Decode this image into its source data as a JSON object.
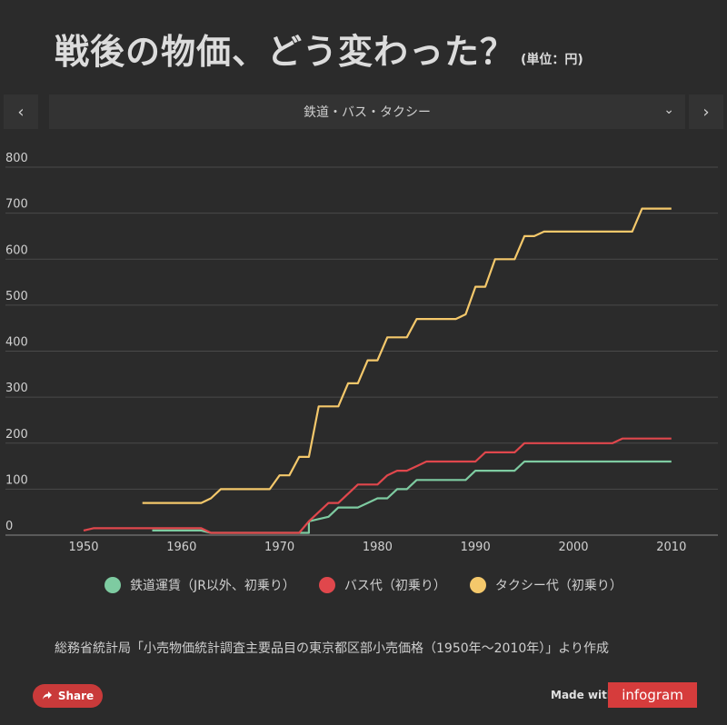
{
  "header": {
    "title": "戦後の物価、どう変わった？",
    "unit": "(単位：円)"
  },
  "nav": {
    "prev_icon": "‹",
    "next_icon": "›",
    "selected_category": "鉄道・バス・タクシー",
    "dropdown_icon": "⌄"
  },
  "chart_data": {
    "type": "line",
    "title": "戦後の物価、どう変わった？",
    "ylabel": "単位：円",
    "xlim": [
      1945,
      2015
    ],
    "ylim": [
      0,
      800
    ],
    "x_ticks": [
      1950,
      1960,
      1970,
      1980,
      1990,
      2000,
      2010
    ],
    "y_ticks": [
      0,
      100,
      200,
      300,
      400,
      500,
      600,
      700,
      800
    ],
    "series": [
      {
        "name": "鉄道運賃（JR以外、初乗り）",
        "color": "#7ecba1",
        "points": [
          [
            1957,
            10
          ],
          [
            1962,
            10
          ],
          [
            1963,
            5
          ],
          [
            1971,
            5
          ],
          [
            1973,
            5
          ],
          [
            1973,
            30
          ],
          [
            1974,
            35
          ],
          [
            1975,
            40
          ],
          [
            1976,
            60
          ],
          [
            1977,
            60
          ],
          [
            1978,
            60
          ],
          [
            1979,
            70
          ],
          [
            1980,
            80
          ],
          [
            1981,
            80
          ],
          [
            1982,
            100
          ],
          [
            1983,
            100
          ],
          [
            1984,
            120
          ],
          [
            1985,
            120
          ],
          [
            1989,
            120
          ],
          [
            1990,
            140
          ],
          [
            1991,
            140
          ],
          [
            1994,
            140
          ],
          [
            1995,
            160
          ],
          [
            2010,
            160
          ]
        ]
      },
      {
        "name": "バス代（初乗り）",
        "color": "#e0474c",
        "points": [
          [
            1950,
            10
          ],
          [
            1951,
            15
          ],
          [
            1962,
            15
          ],
          [
            1963,
            5
          ],
          [
            1972,
            5
          ],
          [
            1973,
            30
          ],
          [
            1974,
            50
          ],
          [
            1975,
            70
          ],
          [
            1976,
            70
          ],
          [
            1977,
            90
          ],
          [
            1978,
            110
          ],
          [
            1979,
            110
          ],
          [
            1980,
            110
          ],
          [
            1981,
            130
          ],
          [
            1982,
            140
          ],
          [
            1983,
            140
          ],
          [
            1984,
            150
          ],
          [
            1985,
            160
          ],
          [
            1990,
            160
          ],
          [
            1991,
            180
          ],
          [
            1992,
            180
          ],
          [
            1994,
            180
          ],
          [
            1995,
            200
          ],
          [
            2004,
            200
          ],
          [
            2005,
            210
          ],
          [
            2010,
            210
          ]
        ]
      },
      {
        "name": "タクシー代（初乗り）",
        "color": "#f4c86b",
        "points": [
          [
            1956,
            70
          ],
          [
            1962,
            70
          ],
          [
            1963,
            80
          ],
          [
            1964,
            100
          ],
          [
            1969,
            100
          ],
          [
            1970,
            130
          ],
          [
            1971,
            130
          ],
          [
            1972,
            170
          ],
          [
            1973,
            170
          ],
          [
            1974,
            280
          ],
          [
            1975,
            280
          ],
          [
            1976,
            280
          ],
          [
            1977,
            330
          ],
          [
            1978,
            330
          ],
          [
            1979,
            380
          ],
          [
            1980,
            380
          ],
          [
            1981,
            430
          ],
          [
            1982,
            430
          ],
          [
            1983,
            430
          ],
          [
            1984,
            470
          ],
          [
            1988,
            470
          ],
          [
            1989,
            480
          ],
          [
            1990,
            540
          ],
          [
            1991,
            540
          ],
          [
            1992,
            600
          ],
          [
            1993,
            600
          ],
          [
            1994,
            600
          ],
          [
            1995,
            650
          ],
          [
            1996,
            650
          ],
          [
            1997,
            660
          ],
          [
            2006,
            660
          ],
          [
            2007,
            710
          ],
          [
            2010,
            710
          ]
        ]
      }
    ]
  },
  "source": "総務省統計局「小売物価統計調査主要品目の東京都区部小売価格（1950年〜2010年）」より作成",
  "footer": {
    "share_label": "Share",
    "made_with": "Made with",
    "brand": "infogram"
  }
}
